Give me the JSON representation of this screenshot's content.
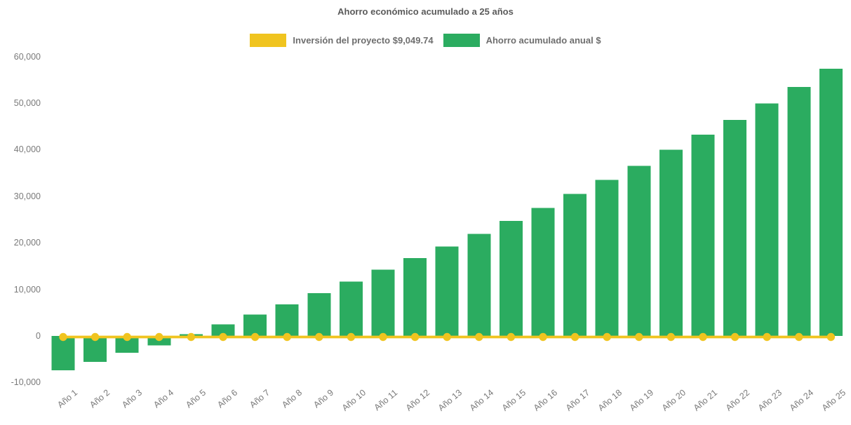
{
  "chart_data": {
    "type": "bar",
    "title": "Ahorro económico acumulado a 25 años",
    "categories": [
      "Año 1",
      "Año 2",
      "Año 3",
      "Año 4",
      "Año 5",
      "Año 6",
      "Año 7",
      "Año 8",
      "Año 9",
      "Año 10",
      "Año 11",
      "Año 12",
      "Año 13",
      "Año 14",
      "Año 15",
      "Año 16",
      "Año 17",
      "Año 18",
      "Año 19",
      "Año 20",
      "Año 21",
      "Año 22",
      "Año 23",
      "Año 24",
      "Año 25"
    ],
    "series": [
      {
        "name": "Inversión del proyecto $9,049.74",
        "type": "line",
        "color": "#F0C41F",
        "investment_amount": 9049.74,
        "values": [
          0,
          0,
          0,
          0,
          0,
          0,
          0,
          0,
          0,
          0,
          0,
          0,
          0,
          0,
          0,
          0,
          0,
          0,
          0,
          0,
          0,
          0,
          0,
          0,
          0
        ]
      },
      {
        "name": "Ahorro acumulado anual $",
        "type": "bar",
        "color": "#2BAC60",
        "values": [
          -7400,
          -5600,
          -3600,
          -2000,
          400,
          2500,
          4600,
          6800,
          9200,
          11700,
          14200,
          16700,
          19200,
          21900,
          24700,
          27500,
          30500,
          33500,
          36500,
          40000,
          43200,
          46400,
          49900,
          53500,
          57400
        ]
      }
    ],
    "ylim": [
      -10000,
      60000
    ],
    "yticks": [
      60000,
      50000,
      40000,
      30000,
      20000,
      10000,
      0,
      -10000
    ],
    "xlabel": "",
    "ylabel": "",
    "grid": false,
    "legend_position": "top",
    "text_colors": {
      "title": "#5a5a5a",
      "legend": "#6e6e6e",
      "ticks": "#7a7a7a"
    }
  }
}
